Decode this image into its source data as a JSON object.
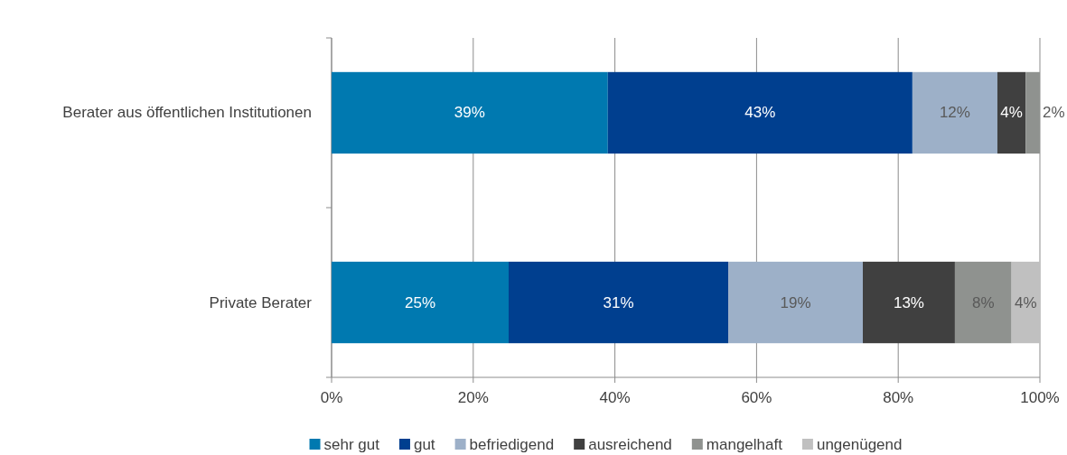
{
  "chart_data": {
    "type": "bar",
    "orientation": "horizontal",
    "stacked": true,
    "categories": [
      "Berater aus öffentlichen Institutionen",
      "Private Berater"
    ],
    "xlim": [
      0,
      100
    ],
    "xticks": [
      {
        "value": 0,
        "label": "0%"
      },
      {
        "value": 20,
        "label": "20%"
      },
      {
        "value": 40,
        "label": "40%"
      },
      {
        "value": 60,
        "label": "60%"
      },
      {
        "value": 80,
        "label": "80%"
      },
      {
        "value": 100,
        "label": "100%"
      }
    ],
    "grid": "x",
    "legend": "bottom",
    "series": [
      {
        "name": "sehr gut",
        "color": "#0079b0",
        "values": [
          39,
          25
        ],
        "value_labels": [
          "39%",
          "25%"
        ]
      },
      {
        "name": "gut",
        "color": "#003f8f",
        "values": [
          43,
          31
        ],
        "value_labels": [
          "43%",
          "31%"
        ]
      },
      {
        "name": "befriedigend",
        "color": "#9db0c8",
        "values": [
          12,
          19
        ],
        "value_labels": [
          "12%",
          "19%"
        ]
      },
      {
        "name": "ausreichend",
        "color": "#404040",
        "values": [
          4,
          13
        ],
        "value_labels": [
          "4%",
          "13%"
        ]
      },
      {
        "name": "mangelhaft",
        "color": "#8f928f",
        "values": [
          2,
          8
        ],
        "value_labels": [
          "2%",
          "8%"
        ]
      },
      {
        "name": "ungenügend",
        "color": "#c0c0c0",
        "values": [
          null,
          4
        ],
        "value_labels": [
          null,
          "4%"
        ]
      }
    ]
  }
}
